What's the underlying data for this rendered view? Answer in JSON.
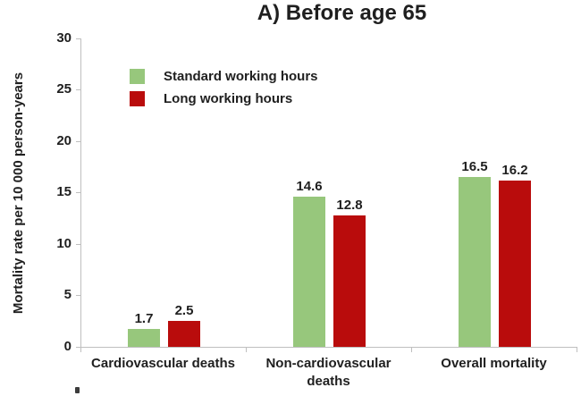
{
  "title": "A) Before age 65",
  "ylabel": "Mortality rate per 10 000 person-years",
  "colors": {
    "standard_series": "#97c77c",
    "long_series": "#b90c0c",
    "axis_line": "#bfbfbf",
    "text": "#1f1f1f",
    "background": "#ffffff"
  },
  "chart_data": {
    "type": "bar",
    "title": "A) Before age 65",
    "xlabel": "",
    "ylabel": "Mortality rate per 10 000 person-years",
    "categories": [
      "Cardiovascular deaths",
      "Non-cardiovascular deaths",
      "Overall mortality"
    ],
    "series": [
      {
        "name": "Standard working hours",
        "color": "#97c77c",
        "values": [
          1.7,
          14.6,
          16.5
        ]
      },
      {
        "name": "Long working hours",
        "color": "#b90c0c",
        "values": [
          2.5,
          12.8,
          16.2
        ]
      }
    ],
    "ylim": [
      0,
      30
    ],
    "yticks": [
      0,
      5,
      10,
      15,
      20,
      25,
      30
    ],
    "grid": false,
    "data_labels": true,
    "legend_position": "top-left-inside"
  }
}
